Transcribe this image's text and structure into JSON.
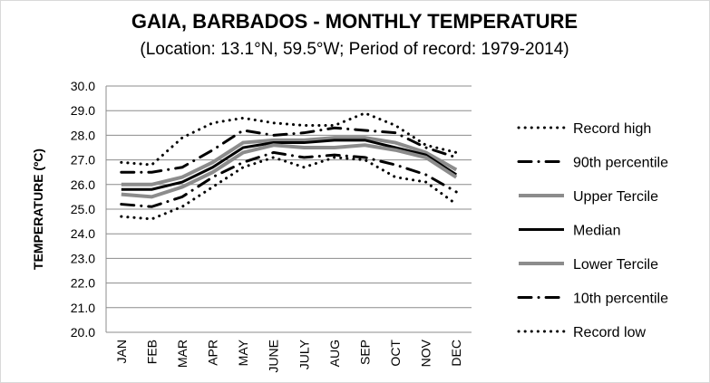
{
  "chart_data": {
    "type": "line",
    "title": "GAIA, BARBADOS - MONTHLY TEMPERATURE",
    "subtitle": "(Location: 13.1°N, 59.5°W; Period of record: 1979-2014)",
    "xlabel": "",
    "ylabel": "TEMPERATURE (ºC)",
    "ylim": [
      20.0,
      30.0
    ],
    "yticks": [
      "20.0",
      "21.0",
      "22.0",
      "23.0",
      "24.0",
      "25.0",
      "26.0",
      "27.0",
      "28.0",
      "29.0",
      "30.0"
    ],
    "grid": true,
    "legend_placement": "right",
    "categories": [
      "JAN",
      "FEB",
      "MAR",
      "APR",
      "MAY",
      "JUNE",
      "JULY",
      "AUG",
      "SEP",
      "OCT",
      "NOV",
      "DEC"
    ],
    "series": [
      {
        "name": "Record high",
        "style": "dotted",
        "color": "#000000",
        "values": [
          26.9,
          26.8,
          27.9,
          28.5,
          28.7,
          28.5,
          28.4,
          28.4,
          28.9,
          28.4,
          27.6,
          27.3
        ]
      },
      {
        "name": "90th percentile",
        "style": "dashdot",
        "color": "#000000",
        "values": [
          26.5,
          26.5,
          26.7,
          27.4,
          28.2,
          28.0,
          28.1,
          28.3,
          28.2,
          28.1,
          27.5,
          27.1
        ]
      },
      {
        "name": "Upper Tercile",
        "style": "solid",
        "color": "#8c8c8c",
        "values": [
          26.0,
          26.0,
          26.3,
          26.9,
          27.7,
          27.8,
          27.8,
          27.9,
          27.9,
          27.7,
          27.3,
          26.6
        ]
      },
      {
        "name": "Median",
        "style": "solid",
        "color": "#000000",
        "values": [
          25.8,
          25.8,
          26.1,
          26.7,
          27.5,
          27.7,
          27.7,
          27.8,
          27.8,
          27.5,
          27.2,
          26.4
        ]
      },
      {
        "name": "Lower Tercile",
        "style": "solid",
        "color": "#8c8c8c",
        "values": [
          25.6,
          25.5,
          25.9,
          26.5,
          27.3,
          27.6,
          27.5,
          27.5,
          27.6,
          27.4,
          27.1,
          26.3
        ]
      },
      {
        "name": "10th percentile",
        "style": "dashdot",
        "color": "#000000",
        "values": [
          25.2,
          25.1,
          25.5,
          26.3,
          26.9,
          27.3,
          27.1,
          27.2,
          27.1,
          26.8,
          26.4,
          25.7
        ]
      },
      {
        "name": "Record low",
        "style": "dotted",
        "color": "#000000",
        "values": [
          24.7,
          24.6,
          25.1,
          25.9,
          26.7,
          27.1,
          26.7,
          27.1,
          27.0,
          26.3,
          26.1,
          25.2
        ]
      }
    ]
  }
}
